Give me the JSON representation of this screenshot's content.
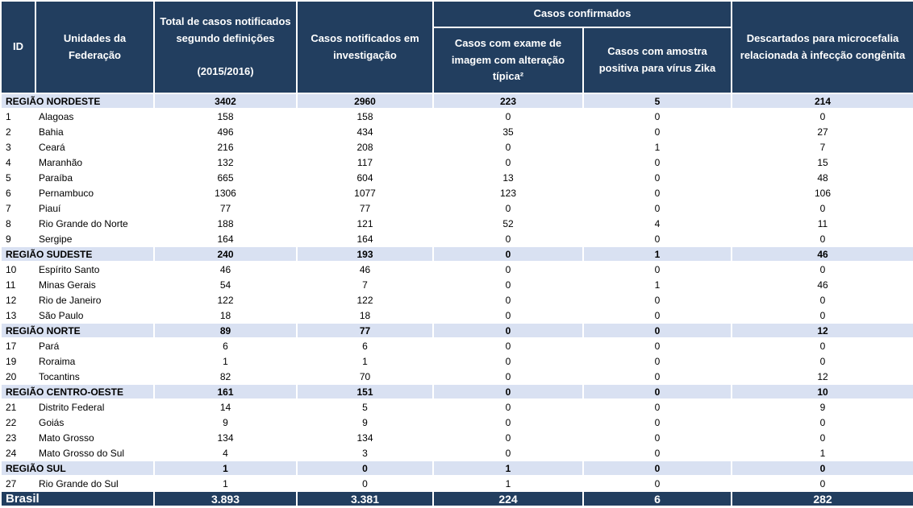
{
  "table": {
    "header": {
      "id": "ID",
      "uf": "Unidades da Federação",
      "total": "Total de casos notificados segundo definições\n\n(2015/2016)",
      "investigacao": "Casos notificados em investigação",
      "confirmados": "Casos confirmados",
      "exame": "Casos com exame de imagem com alteração típica²",
      "amostra": "Casos com amostra positiva para vírus Zika",
      "descartados": "Descartados para microcefalia relacionada à infecção congênita"
    },
    "rows": [
      {
        "type": "region",
        "label": "REGIÃO NORDESTE",
        "values": [
          "3402",
          "2960",
          "223",
          "5",
          "214"
        ]
      },
      {
        "type": "state",
        "id": "1",
        "name": "Alagoas",
        "values": [
          "158",
          "158",
          "0",
          "0",
          "0"
        ]
      },
      {
        "type": "state",
        "id": "2",
        "name": "Bahia",
        "values": [
          "496",
          "434",
          "35",
          "0",
          "27"
        ]
      },
      {
        "type": "state",
        "id": "3",
        "name": "Ceará",
        "values": [
          "216",
          "208",
          "0",
          "1",
          "7"
        ]
      },
      {
        "type": "state",
        "id": "4",
        "name": "Maranhão",
        "values": [
          "132",
          "117",
          "0",
          "0",
          "15"
        ]
      },
      {
        "type": "state",
        "id": "5",
        "name": "Paraíba",
        "values": [
          "665",
          "604",
          "13",
          "0",
          "48"
        ]
      },
      {
        "type": "state",
        "id": "6",
        "name": "Pernambuco",
        "values": [
          "1306",
          "1077",
          "123",
          "0",
          "106"
        ]
      },
      {
        "type": "state",
        "id": "7",
        "name": "Piauí",
        "values": [
          "77",
          "77",
          "0",
          "0",
          "0"
        ]
      },
      {
        "type": "state",
        "id": "8",
        "name": "Rio Grande do Norte",
        "values": [
          "188",
          "121",
          "52",
          "4",
          "11"
        ]
      },
      {
        "type": "state",
        "id": "9",
        "name": "Sergipe",
        "values": [
          "164",
          "164",
          "0",
          "0",
          "0"
        ]
      },
      {
        "type": "region",
        "label": "REGIÃO SUDESTE",
        "values": [
          "240",
          "193",
          "0",
          "1",
          "46"
        ]
      },
      {
        "type": "state",
        "id": "10",
        "name": "Espírito Santo",
        "values": [
          "46",
          "46",
          "0",
          "0",
          "0"
        ]
      },
      {
        "type": "state",
        "id": "11",
        "name": "Minas Gerais",
        "values": [
          "54",
          "7",
          "0",
          "1",
          "46"
        ]
      },
      {
        "type": "state",
        "id": "12",
        "name": "Rio de Janeiro",
        "values": [
          "122",
          "122",
          "0",
          "0",
          "0"
        ]
      },
      {
        "type": "state",
        "id": "13",
        "name": "São Paulo",
        "values": [
          "18",
          "18",
          "0",
          "0",
          "0"
        ]
      },
      {
        "type": "region",
        "label": "REGIÃO NORTE",
        "values": [
          "89",
          "77",
          "0",
          "0",
          "12"
        ]
      },
      {
        "type": "state",
        "id": "17",
        "name": "Pará",
        "values": [
          "6",
          "6",
          "0",
          "0",
          "0"
        ]
      },
      {
        "type": "state",
        "id": "19",
        "name": "Roraima",
        "values": [
          "1",
          "1",
          "0",
          "0",
          "0"
        ]
      },
      {
        "type": "state",
        "id": "20",
        "name": "Tocantins",
        "values": [
          "82",
          "70",
          "0",
          "0",
          "12"
        ]
      },
      {
        "type": "region",
        "label": "REGIÃO CENTRO-OESTE",
        "values": [
          "161",
          "151",
          "0",
          "0",
          "10"
        ]
      },
      {
        "type": "state",
        "id": "21",
        "name": "Distrito Federal",
        "values": [
          "14",
          "5",
          "0",
          "0",
          "9"
        ]
      },
      {
        "type": "state",
        "id": "22",
        "name": "Goiás",
        "values": [
          "9",
          "9",
          "0",
          "0",
          "0"
        ]
      },
      {
        "type": "state",
        "id": "23",
        "name": "Mato Grosso",
        "values": [
          "134",
          "134",
          "0",
          "0",
          "0"
        ]
      },
      {
        "type": "state",
        "id": "24",
        "name": "Mato Grosso do Sul",
        "values": [
          "4",
          "3",
          "0",
          "0",
          "1"
        ]
      },
      {
        "type": "region",
        "label": "REGIÃO SUL",
        "values": [
          "1",
          "0",
          "1",
          "0",
          "0"
        ]
      },
      {
        "type": "state",
        "id": "27",
        "name": "Rio Grande do Sul",
        "values": [
          "1",
          "0",
          "1",
          "0",
          "0"
        ]
      }
    ],
    "footer": {
      "label": "Brasil",
      "values": [
        "3.893",
        "3.381",
        "224",
        "6",
        "282"
      ]
    },
    "colors": {
      "header_bg": "#223E5F",
      "region_band_bg": "#D9E1F2",
      "footer_bg": "#223E5F",
      "grid": "#FFFFFF"
    }
  }
}
